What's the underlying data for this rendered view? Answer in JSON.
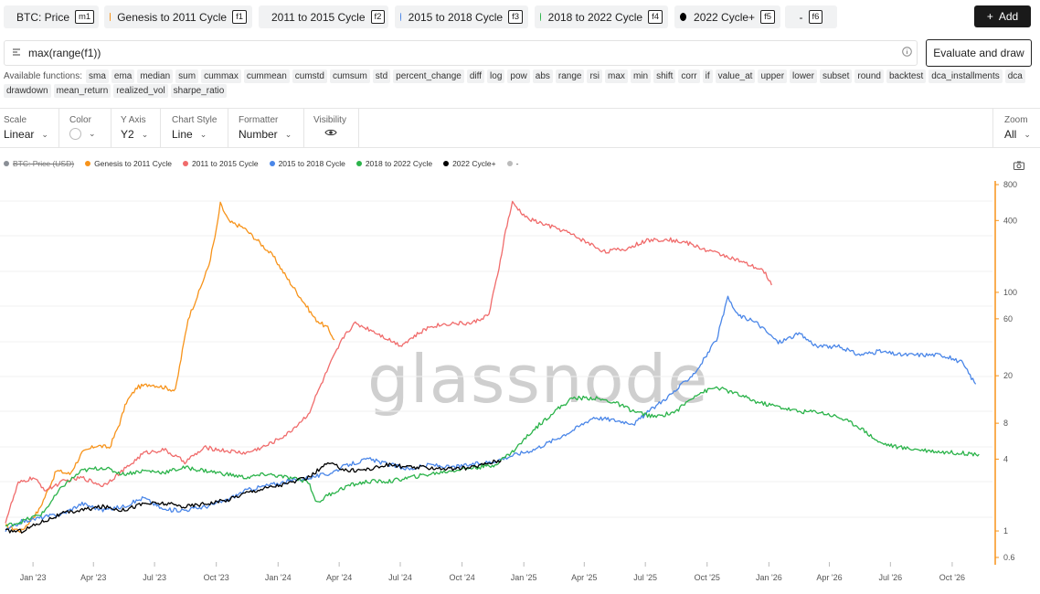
{
  "metrics": [
    {
      "label": "BTC: Price",
      "tag": "m1",
      "color": "#8a8f96"
    },
    {
      "label": "Genesis to 2011 Cycle",
      "tag": "f1",
      "color": "#f7931a"
    },
    {
      "label": "2011 to 2015 Cycle",
      "tag": "f2",
      "color": "#f06b6b"
    },
    {
      "label": "2015 to 2018 Cycle",
      "tag": "f3",
      "color": "#4a86e8"
    },
    {
      "label": "2018 to 2022 Cycle",
      "tag": "f4",
      "color": "#2bb34a"
    },
    {
      "label": "2022 Cycle+",
      "tag": "f5",
      "color": "#000000"
    },
    {
      "label": "-",
      "tag": "f6",
      "color": ""
    }
  ],
  "add_button": "Add",
  "formula": {
    "value": "max(range(f1))"
  },
  "evaluate_button": "Evaluate and draw",
  "functions_label": "Available functions:",
  "functions": [
    "sma",
    "ema",
    "median",
    "sum",
    "cummax",
    "cummean",
    "cumstd",
    "cumsum",
    "std",
    "percent_change",
    "diff",
    "log",
    "pow",
    "abs",
    "range",
    "rsi",
    "max",
    "min",
    "shift",
    "corr",
    "if",
    "value_at",
    "upper",
    "lower",
    "subset",
    "round",
    "backtest",
    "dca_installments",
    "dca",
    "drawdown",
    "mean_return",
    "realized_vol",
    "sharpe_ratio"
  ],
  "controls": {
    "scale": {
      "label": "Scale",
      "value": "Linear"
    },
    "color": {
      "label": "Color"
    },
    "y_axis": {
      "label": "Y Axis",
      "value": "Y2"
    },
    "chart_style": {
      "label": "Chart Style",
      "value": "Line"
    },
    "formatter": {
      "label": "Formatter",
      "value": "Number"
    },
    "visibility": {
      "label": "Visibility"
    },
    "zoom": {
      "label": "Zoom",
      "value": "All"
    }
  },
  "legend": [
    {
      "label": "BTC: Price (USD)",
      "color": "#8a8f96",
      "hidden": true
    },
    {
      "label": "Genesis to 2011 Cycle",
      "color": "#f7931a"
    },
    {
      "label": "2011 to 2015 Cycle",
      "color": "#f06b6b"
    },
    {
      "label": "2015 to 2018 Cycle",
      "color": "#4a86e8"
    },
    {
      "label": "2018 to 2022 Cycle",
      "color": "#2bb34a"
    },
    {
      "label": "2022 Cycle+",
      "color": "#000000"
    },
    {
      "label": "-",
      "color": "#bbbbbb"
    }
  ],
  "watermark": "glassnode",
  "chart_data": {
    "type": "line",
    "scale": "log",
    "title": "",
    "xlabel": "",
    "ylabel": "",
    "x_ticks": [
      "Jan '23",
      "Apr '23",
      "Jul '23",
      "Oct '23",
      "Jan '24",
      "Apr '24",
      "Jul '24",
      "Oct '24",
      "Jan '25",
      "Apr '25",
      "Jul '25",
      "Oct '25",
      "Jan '26",
      "Apr '26",
      "Jul '26",
      "Oct '26"
    ],
    "x_range": [
      "2022-11-21",
      "2026-11-30"
    ],
    "y_ticks": [
      0.6,
      1,
      4,
      8,
      20,
      60,
      100,
      400,
      800
    ],
    "y_range": [
      0.6,
      800
    ],
    "y_axis_color": "#f7931a",
    "grid": true,
    "series": [
      {
        "name": "Genesis to 2011 Cycle",
        "color": "#f7931a",
        "x": [
          "2022-11-21",
          "2022-12-15",
          "2023-01-10",
          "2023-02-05",
          "2023-02-25",
          "2023-03-15",
          "2023-04-05",
          "2023-04-25",
          "2023-05-10",
          "2023-05-20",
          "2023-06-05",
          "2023-06-25",
          "2023-07-15",
          "2023-08-01",
          "2023-08-20",
          "2023-09-05",
          "2023-09-20",
          "2023-10-01",
          "2023-10-07",
          "2023-10-20",
          "2023-11-10",
          "2023-12-05",
          "2023-12-25",
          "2024-01-15",
          "2024-02-10",
          "2024-02-25",
          "2024-03-15",
          "2024-03-25"
        ],
        "y": [
          1.1,
          1.0,
          1.5,
          3.2,
          3.0,
          4.5,
          5.2,
          5.0,
          8.0,
          12,
          16,
          17,
          16,
          15,
          60,
          100,
          170,
          330,
          550,
          390,
          350,
          260,
          200,
          130,
          80,
          60,
          50,
          40
        ]
      },
      {
        "name": "2011 to 2015 Cycle",
        "color": "#f06b6b",
        "x": [
          "2022-11-21",
          "2022-12-10",
          "2023-01-01",
          "2023-01-20",
          "2023-02-15",
          "2023-03-15",
          "2023-04-15",
          "2023-05-15",
          "2023-06-15",
          "2023-07-15",
          "2023-08-15",
          "2023-09-15",
          "2023-10-15",
          "2023-11-15",
          "2023-12-15",
          "2024-01-15",
          "2024-02-15",
          "2024-03-01",
          "2024-03-20",
          "2024-04-10",
          "2024-04-25",
          "2024-05-20",
          "2024-06-15",
          "2024-07-01",
          "2024-07-20",
          "2024-08-15",
          "2024-09-15",
          "2024-10-15",
          "2024-11-10",
          "2024-11-25",
          "2024-12-05",
          "2024-12-15",
          "2025-01-05",
          "2025-02-01",
          "2025-03-01",
          "2025-04-01",
          "2025-05-01",
          "2025-06-01",
          "2025-07-01",
          "2025-08-01",
          "2025-09-01",
          "2025-10-01",
          "2025-11-01",
          "2025-12-01",
          "2025-12-25",
          "2026-01-05"
        ],
        "y": [
          1.2,
          2.5,
          2.8,
          2.2,
          2.6,
          2.8,
          2.4,
          3.2,
          4.5,
          4.8,
          3.8,
          5.0,
          4.7,
          4.5,
          5.2,
          6.5,
          9.5,
          15,
          26,
          45,
          55,
          48,
          40,
          36,
          42,
          52,
          55,
          55,
          65,
          160,
          330,
          560,
          420,
          370,
          330,
          270,
          220,
          230,
          270,
          280,
          260,
          225,
          200,
          170,
          150,
          115
        ]
      },
      {
        "name": "2015 to 2018 Cycle",
        "color": "#4a86e8",
        "x": [
          "2022-11-21",
          "2022-12-15",
          "2023-01-15",
          "2023-02-15",
          "2023-03-15",
          "2023-04-15",
          "2023-05-15",
          "2023-06-15",
          "2023-07-15",
          "2023-08-15",
          "2023-09-15",
          "2023-10-15",
          "2023-11-15",
          "2023-12-15",
          "2024-01-15",
          "2024-02-15",
          "2024-03-15",
          "2024-04-15",
          "2024-05-15",
          "2024-06-15",
          "2024-07-15",
          "2024-08-15",
          "2024-09-15",
          "2024-10-15",
          "2024-11-15",
          "2024-12-15",
          "2025-01-15",
          "2025-02-15",
          "2025-03-15",
          "2025-04-15",
          "2025-05-15",
          "2025-06-15",
          "2025-07-15",
          "2025-08-15",
          "2025-09-15",
          "2025-10-15",
          "2025-11-01",
          "2025-11-15",
          "2025-12-15",
          "2026-01-15",
          "2026-02-15",
          "2026-03-15",
          "2026-04-15",
          "2026-05-15",
          "2026-06-15",
          "2026-07-15",
          "2026-08-15",
          "2026-09-15",
          "2026-10-15",
          "2026-11-05"
        ],
        "y": [
          1.0,
          1.2,
          1.3,
          1.4,
          1.7,
          1.5,
          1.6,
          1.9,
          1.5,
          1.5,
          1.6,
          1.8,
          2.2,
          2.4,
          2.6,
          2.8,
          3.0,
          3.6,
          4.0,
          3.6,
          3.3,
          3.6,
          3.4,
          3.6,
          3.8,
          4.3,
          4.8,
          5.8,
          7.0,
          9.0,
          8.5,
          8.0,
          11,
          15,
          22,
          40,
          90,
          65,
          55,
          38,
          45,
          35,
          35,
          30,
          32,
          30,
          30,
          30,
          26,
          17
        ]
      },
      {
        "name": "2018 to 2022 Cycle",
        "color": "#2bb34a",
        "x": [
          "2022-11-21",
          "2022-12-15",
          "2023-01-15",
          "2023-02-15",
          "2023-03-15",
          "2023-04-15",
          "2023-05-15",
          "2023-06-15",
          "2023-07-15",
          "2023-08-15",
          "2023-09-15",
          "2023-10-15",
          "2023-11-15",
          "2023-12-15",
          "2024-01-15",
          "2024-02-15",
          "2024-02-28",
          "2024-03-15",
          "2024-04-15",
          "2024-05-15",
          "2024-06-15",
          "2024-07-15",
          "2024-08-15",
          "2024-09-15",
          "2024-10-15",
          "2024-11-15",
          "2024-12-15",
          "2025-01-15",
          "2025-02-15",
          "2025-03-15",
          "2025-04-15",
          "2025-05-15",
          "2025-06-15",
          "2025-07-15",
          "2025-08-15",
          "2025-09-15",
          "2025-10-15",
          "2025-11-15",
          "2025-12-15",
          "2026-01-15",
          "2026-02-15",
          "2026-03-15",
          "2026-04-15",
          "2026-05-15",
          "2026-06-15",
          "2026-07-15",
          "2026-08-15",
          "2026-09-15",
          "2026-10-15",
          "2026-11-10"
        ],
        "y": [
          1.1,
          1.2,
          1.4,
          2.4,
          3.2,
          3.4,
          3.0,
          3.2,
          3.1,
          3.4,
          3.2,
          3.0,
          2.8,
          3.0,
          2.8,
          2.6,
          1.7,
          2.0,
          2.4,
          2.6,
          2.6,
          2.8,
          3.0,
          3.2,
          3.4,
          3.5,
          4.6,
          7.0,
          10,
          13,
          13,
          12,
          10,
          9.0,
          10,
          14,
          16,
          14,
          12,
          11,
          10,
          10,
          9.0,
          7.5,
          5.5,
          5.0,
          4.8,
          4.6,
          4.5,
          4.4
        ]
      },
      {
        "name": "2022 Cycle+",
        "color": "#000000",
        "x": [
          "2022-11-21",
          "2022-12-15",
          "2023-01-15",
          "2023-02-15",
          "2023-03-15",
          "2023-04-15",
          "2023-05-15",
          "2023-06-15",
          "2023-07-15",
          "2023-08-15",
          "2023-09-15",
          "2023-10-15",
          "2023-11-15",
          "2023-12-15",
          "2024-01-15",
          "2024-02-15",
          "2024-03-15",
          "2024-04-15",
          "2024-05-15",
          "2024-06-15",
          "2024-07-15",
          "2024-08-15",
          "2024-09-15",
          "2024-10-15",
          "2024-11-15",
          "2024-11-28"
        ],
        "y": [
          1.0,
          1.0,
          1.2,
          1.4,
          1.5,
          1.6,
          1.5,
          1.7,
          1.7,
          1.6,
          1.7,
          1.8,
          2.1,
          2.3,
          2.5,
          2.8,
          3.7,
          3.2,
          3.3,
          3.6,
          3.4,
          3.4,
          3.3,
          3.4,
          3.8,
          3.9
        ]
      }
    ]
  }
}
